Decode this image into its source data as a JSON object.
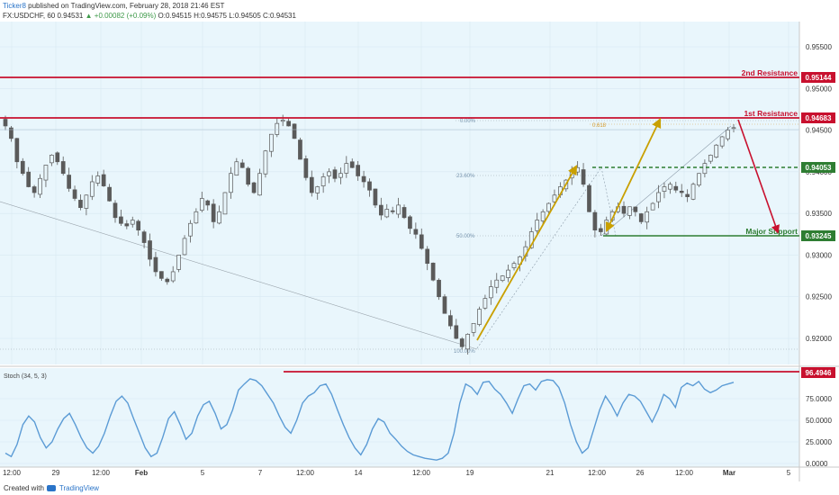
{
  "header": {
    "author": "Ticker8",
    "published_text": " published on TradingView.com, February 28, 2018 21:46 EST",
    "symbol_line": "FX:USDCHF, 60  0.94531",
    "change": "+0.00082 (+0.09%)",
    "ohlc": "O:0.94515  H:0.94575  L:0.94505  C:0.94531"
  },
  "footer": {
    "created_with": "Created with",
    "brand": "TradingView"
  },
  "colors": {
    "plot_bg": "#e9f6fc",
    "resistance": "#c8102e",
    "support": "#2e7d32",
    "arrow_up": "#c9a000",
    "arrow_down": "#c8102e",
    "stoch_line": "#5b9bd5",
    "candle": "#5a5a5a"
  },
  "chart_data": [
    {
      "type": "line",
      "panel": "price",
      "symbol": "FX:USDCHF",
      "timeframe": "60",
      "ylim": [
        0.9165,
        0.9595
      ],
      "y_ticks": [
        "0.95500",
        "0.95000",
        "0.94500",
        "0.94000",
        "0.93500",
        "0.93000",
        "0.92500",
        "0.92000"
      ],
      "x_ticks": [
        "12:00",
        "29",
        "12:00",
        "Feb",
        "5",
        "7",
        "12:00",
        "14",
        "12:00",
        "19",
        "21",
        "12:00",
        "26",
        "12:00",
        "Mar",
        "5"
      ],
      "x_ticks_bold": [
        "Feb",
        "Mar"
      ],
      "series": [
        {
          "values": [
            0.9455,
            0.944,
            0.9412,
            0.9398,
            0.9382,
            0.9375,
            0.9392,
            0.9408,
            0.942,
            0.9412,
            0.9398,
            0.938,
            0.9368,
            0.9357,
            0.9372,
            0.9388,
            0.9395,
            0.9383,
            0.9365,
            0.9345,
            0.9338,
            0.9335,
            0.9342,
            0.933,
            0.9315,
            0.9295,
            0.928,
            0.9272,
            0.9268,
            0.928,
            0.93,
            0.932,
            0.9338,
            0.9352,
            0.9368,
            0.936,
            0.934,
            0.9352,
            0.9375,
            0.9398,
            0.9412,
            0.9405,
            0.9385,
            0.9375,
            0.9398,
            0.9425,
            0.9445,
            0.9458,
            0.9462,
            0.9455,
            0.944,
            0.9415,
            0.9393,
            0.9375,
            0.9382,
            0.9394,
            0.94,
            0.9392,
            0.9398,
            0.941,
            0.9405,
            0.9395,
            0.9388,
            0.9378,
            0.936,
            0.9348,
            0.9355,
            0.9352,
            0.936,
            0.9345,
            0.9332,
            0.9325,
            0.9308,
            0.929,
            0.927,
            0.925,
            0.923,
            0.9215,
            0.92,
            0.919,
            0.9205,
            0.9218,
            0.9235,
            0.9248,
            0.9262,
            0.927,
            0.9275,
            0.9282,
            0.929,
            0.9298,
            0.931,
            0.9328,
            0.9342,
            0.9352,
            0.9362,
            0.9372,
            0.9382,
            0.939,
            0.94,
            0.9405,
            0.9385,
            0.9352,
            0.933,
            0.9328,
            0.9342,
            0.9352,
            0.9358,
            0.935,
            0.9358,
            0.9352,
            0.934,
            0.9352,
            0.9362,
            0.9375,
            0.9382,
            0.9385,
            0.9378,
            0.9375,
            0.937,
            0.9385,
            0.9398,
            0.941,
            0.942,
            0.9432,
            0.9442,
            0.945,
            0.9453
          ]
        }
      ],
      "levels": [
        {
          "label": "2nd Resistance",
          "value": "0.95144",
          "kind": "resistance"
        },
        {
          "label": "1st Resistance",
          "value": "0.94683",
          "kind": "resistance"
        },
        {
          "label": "",
          "value": "0.94053",
          "kind": "support_dashed"
        },
        {
          "label": "Major Support",
          "value": "0.93245",
          "kind": "support"
        }
      ],
      "fib_labels": [
        "0.00%",
        "23.60%",
        "50.00%",
        "100.00%"
      ],
      "fib_extension_label": "0.618"
    },
    {
      "type": "line",
      "panel": "oscillator",
      "title": "Stoch (34, 5, 3)",
      "ylim": [
        0,
        100
      ],
      "y_ticks": [
        "75.0000",
        "50.0000",
        "25.0000",
        "0.0000"
      ],
      "level": {
        "value": "96.4946"
      },
      "series": [
        {
          "values": [
            12,
            8,
            22,
            45,
            55,
            48,
            30,
            18,
            25,
            40,
            52,
            58,
            45,
            30,
            18,
            12,
            20,
            35,
            55,
            72,
            78,
            70,
            52,
            35,
            18,
            8,
            12,
            30,
            52,
            60,
            45,
            28,
            35,
            55,
            68,
            72,
            58,
            40,
            45,
            62,
            85,
            92,
            98,
            96,
            90,
            80,
            70,
            55,
            42,
            35,
            50,
            70,
            78,
            82,
            90,
            92,
            80,
            62,
            45,
            30,
            18,
            10,
            22,
            40,
            52,
            48,
            35,
            28,
            20,
            14,
            10,
            8,
            6,
            5,
            4,
            6,
            12,
            35,
            70,
            92,
            88,
            80,
            94,
            95,
            86,
            80,
            70,
            58,
            75,
            90,
            92,
            85,
            95,
            97,
            96,
            88,
            70,
            45,
            25,
            12,
            18,
            40,
            62,
            78,
            68,
            55,
            70,
            80,
            78,
            72,
            60,
            48,
            62,
            80,
            75,
            65,
            88,
            93,
            90,
            95,
            86,
            82,
            85,
            90,
            92,
            94
          ]
        }
      ]
    }
  ]
}
